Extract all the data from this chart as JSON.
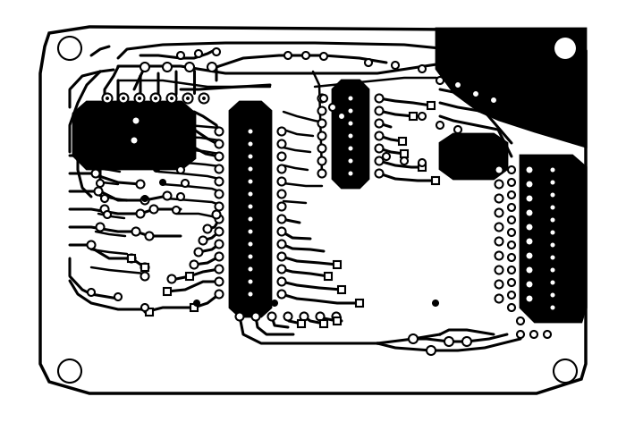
{
  "bg_color": "#ffffff",
  "trace_color": "#000000",
  "pad_fill": "#ffffff",
  "pad_edge": "#000000",
  "copper_fill": "#000000",
  "figsize": [
    7.0,
    4.72
  ],
  "dpi": 100
}
